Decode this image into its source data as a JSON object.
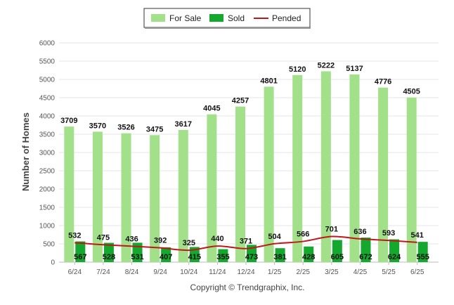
{
  "chart_data": {
    "type": "bar",
    "ylabel": "Number of Homes",
    "ylim": [
      0,
      6000
    ],
    "yticks": [
      0,
      500,
      1000,
      1500,
      2000,
      2500,
      3000,
      3500,
      4000,
      4500,
      5000,
      5500,
      6000
    ],
    "categories": [
      "6/24",
      "7/24",
      "8/24",
      "9/24",
      "10/24",
      "11/24",
      "12/24",
      "1/25",
      "2/25",
      "3/25",
      "4/25",
      "5/25",
      "6/25"
    ],
    "series": [
      {
        "name": "For Sale",
        "kind": "bar",
        "color": "#a3e08a",
        "values": [
          3709,
          3570,
          3526,
          3475,
          3617,
          4045,
          4257,
          4801,
          5120,
          5222,
          5137,
          4776,
          4505
        ]
      },
      {
        "name": "Sold",
        "kind": "bar",
        "color": "#15a82e",
        "values": [
          567,
          528,
          531,
          407,
          415,
          355,
          473,
          381,
          428,
          605,
          672,
          624,
          555
        ]
      },
      {
        "name": "Pended",
        "kind": "line",
        "color": "#c01818",
        "values": [
          532,
          475,
          436,
          392,
          325,
          440,
          371,
          504,
          566,
          701,
          636,
          593,
          541
        ]
      }
    ],
    "legend_position": "top-center",
    "grid": true
  },
  "footer": {
    "copyright": "Copyright © Trendgraphix, Inc."
  }
}
